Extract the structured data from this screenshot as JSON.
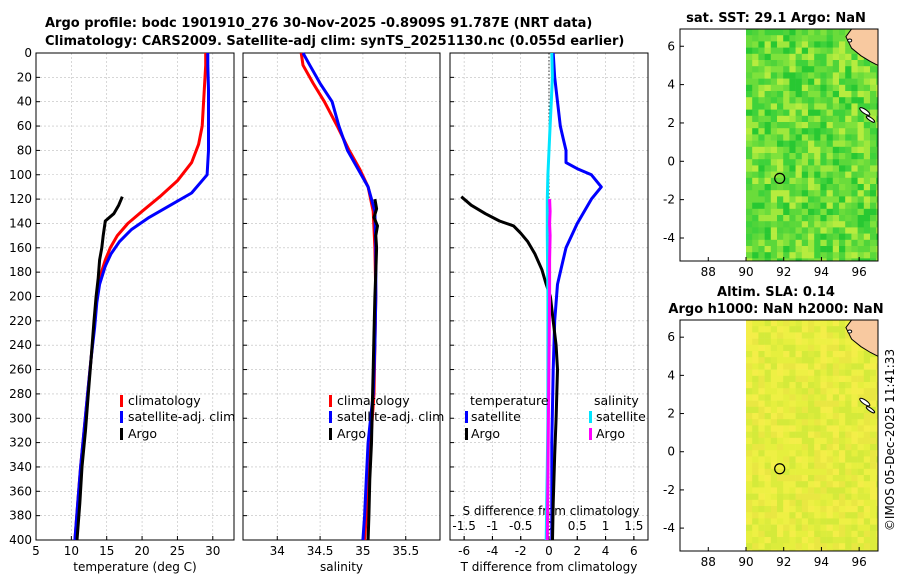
{
  "title": {
    "line1": "Argo profile: bodc 1901910_276 30-Nov-2025 -0.8909S 91.787E (NRT data)",
    "line2": "Climatology: CARS2009. Satellite-adj clim: synTS_20251130.nc (0.055d earlier)"
  },
  "side_label": "©IMOS 05-Dec-2025 11:41:33",
  "colors": {
    "climatology": "#ff0000",
    "satellite": "#0000ff",
    "argo": "#000000",
    "sal_sat": "#00e5ff",
    "sal_argo": "#ff00ff"
  },
  "chart_data": [
    {
      "id": "temp",
      "type": "line",
      "xlabel": "temperature (deg C)",
      "xlim": [
        5,
        33
      ],
      "xticks": [
        5,
        10,
        15,
        20,
        25,
        30
      ],
      "ylim": [
        0,
        400
      ],
      "yticks": [
        0,
        20,
        40,
        60,
        80,
        100,
        120,
        140,
        160,
        180,
        200,
        220,
        240,
        260,
        280,
        300,
        320,
        340,
        360,
        380,
        400
      ],
      "legend": [
        "climatology",
        "satellite-adj. clim",
        "Argo"
      ],
      "series": [
        {
          "name": "climatology",
          "color": "#ff0000",
          "x": [
            29,
            29,
            28.8,
            28.5,
            28,
            27,
            25,
            22.5,
            20,
            18,
            16.5,
            15.5,
            14.8,
            14,
            13.6,
            13.3,
            12.8,
            12.3,
            11.8,
            11.3,
            10.9,
            10.5
          ],
          "y": [
            0,
            10,
            30,
            60,
            75,
            90,
            105,
            118,
            130,
            140,
            150,
            160,
            170,
            185,
            200,
            220,
            250,
            280,
            310,
            340,
            370,
            400
          ]
        },
        {
          "name": "satellite-adj. clim",
          "color": "#0000ff",
          "x": [
            29.3,
            29.3,
            29.4,
            29.4,
            29.4,
            29.2,
            27,
            24,
            21,
            18.5,
            16.8,
            15.6,
            14.8,
            14,
            13.6,
            13.3,
            12.8,
            12.3,
            11.8,
            11.3,
            10.9,
            10.5
          ],
          "y": [
            0,
            10,
            30,
            60,
            80,
            100,
            115,
            125,
            135,
            145,
            155,
            165,
            175,
            190,
            205,
            225,
            250,
            280,
            310,
            340,
            370,
            400
          ]
        },
        {
          "name": "Argo",
          "color": "#000000",
          "x": [
            17.2,
            16.7,
            16,
            14.8,
            14.5,
            14.3,
            14,
            13.8,
            13.5,
            13.2,
            12.8,
            12.4,
            12,
            11.5,
            11.2,
            10.8
          ],
          "y": [
            118,
            125,
            132,
            138,
            150,
            160,
            170,
            185,
            200,
            220,
            250,
            280,
            310,
            340,
            370,
            400
          ]
        }
      ]
    },
    {
      "id": "sal",
      "type": "line",
      "xlabel": "salinity",
      "xlim": [
        33.6,
        35.9
      ],
      "xticks": [
        34,
        34.5,
        35,
        35.5
      ],
      "ylim": [
        0,
        400
      ],
      "legend": [
        "climatology",
        "satellite-adj. clim",
        "Argo"
      ],
      "series": [
        {
          "name": "climatology",
          "color": "#ff0000",
          "x": [
            34.28,
            34.3,
            34.42,
            34.55,
            34.7,
            34.84,
            34.96,
            35.06,
            35.12,
            35.14,
            35.15,
            35.14,
            35.13,
            35.11,
            35.09,
            35.07,
            35.04,
            35.02
          ],
          "y": [
            0,
            10,
            25,
            40,
            60,
            80,
            95,
            110,
            130,
            160,
            200,
            240,
            280,
            300,
            320,
            350,
            380,
            400
          ]
        },
        {
          "name": "satellite-adj. clim",
          "color": "#0000ff",
          "x": [
            34.3,
            34.38,
            34.5,
            34.64,
            34.72,
            34.82,
            34.94,
            35.06,
            35.14,
            35.15,
            35.15,
            35.14,
            35.12,
            35.09,
            35.06,
            35.04,
            35.02,
            35
          ],
          "y": [
            0,
            10,
            25,
            40,
            60,
            80,
            95,
            110,
            130,
            160,
            200,
            240,
            280,
            300,
            320,
            350,
            380,
            400
          ]
        },
        {
          "name": "Argo",
          "color": "#000000",
          "x": [
            35.14,
            35.16,
            35.13,
            35.17,
            35.15,
            35.16,
            35.15,
            35.14,
            35.13,
            35.12,
            35.11,
            35.1,
            35.08,
            35.07,
            35.06
          ],
          "y": [
            120,
            128,
            135,
            142,
            150,
            160,
            180,
            200,
            230,
            260,
            290,
            320,
            350,
            380,
            400
          ]
        }
      ]
    },
    {
      "id": "diff",
      "type": "line",
      "xlabel": "T difference from climatology",
      "x2label": "S difference from climatology",
      "xlim": [
        -7,
        7
      ],
      "xticks": [
        -6,
        -4,
        -2,
        0,
        2,
        4,
        6
      ],
      "x2lim": [
        -1.75,
        1.75
      ],
      "x2ticks": [
        -1.5,
        -1,
        -0.5,
        0,
        0.5,
        1,
        1.5
      ],
      "x2ticklabels": [
        "-1.5",
        "-1",
        "-0.5",
        "0",
        "0.5",
        "1",
        "1.5"
      ],
      "ylim": [
        0,
        400
      ],
      "legend_t_title": "temperature",
      "legend_s_title": "salinity",
      "legend_t": [
        "satellite",
        "Argo"
      ],
      "legend_s": [
        "satellite",
        "Argo"
      ],
      "series": [
        {
          "name": "T satellite",
          "axis": "T",
          "color": "#0000ff",
          "x": [
            0.3,
            0.4,
            0.6,
            0.8,
            1,
            1.2,
            1.2,
            2,
            3,
            3.7,
            3,
            2,
            1.2,
            0.9,
            0.6,
            0.4,
            0.3,
            0.2,
            0.2
          ],
          "y": [
            0,
            20,
            40,
            60,
            70,
            80,
            90,
            95,
            100,
            110,
            120,
            140,
            160,
            175,
            190,
            220,
            260,
            320,
            400
          ]
        },
        {
          "name": "T Argo",
          "axis": "T",
          "color": "#000000",
          "x": [
            -6.2,
            -5.5,
            -4.5,
            -3.5,
            -2.5,
            -2,
            -1.5,
            -1,
            -0.5,
            -0.2,
            0.1,
            0.3,
            0.5,
            0.6,
            0.55,
            0.5,
            0.4,
            0.3,
            0.25
          ],
          "y": [
            118,
            125,
            132,
            138,
            142,
            148,
            155,
            165,
            178,
            190,
            200,
            220,
            240,
            260,
            280,
            300,
            330,
            370,
            400
          ]
        },
        {
          "name": "S satellite",
          "axis": "S",
          "color": "#00e5ff",
          "x": [
            0.05,
            0.06,
            0.04,
            0.02,
            0,
            -0.02,
            -0.03,
            -0.03,
            -0.02,
            -0.02,
            -0.02,
            -0.03,
            -0.04,
            -0.05
          ],
          "y": [
            0,
            20,
            40,
            60,
            80,
            100,
            120,
            150,
            200,
            250,
            300,
            340,
            370,
            400
          ]
        },
        {
          "name": "S Argo",
          "axis": "S",
          "color": "#ff00ff",
          "x": [
            0.01,
            0.02,
            0.01,
            0.02,
            0.01,
            0.01,
            0,
            -0.01,
            -0.02,
            -0.03
          ],
          "y": [
            120,
            130,
            140,
            150,
            170,
            200,
            250,
            300,
            350,
            400
          ]
        }
      ]
    },
    {
      "id": "sst_map",
      "type": "heatmap",
      "title": "sat. SST: 29.1 Argo: NaN",
      "xlim": [
        86.5,
        97
      ],
      "ylim": [
        -5.2,
        6.9
      ],
      "xticks": [
        88,
        90,
        92,
        94,
        96
      ],
      "yticks": [
        -4,
        -2,
        0,
        2,
        4,
        6
      ],
      "argo_position": [
        91.787,
        -0.8909
      ]
    },
    {
      "id": "sla_map",
      "type": "heatmap",
      "title_line1": "Altim. SLA: 0.14",
      "title_line2": "Argo h1000: NaN h2000: NaN",
      "xlim": [
        86.5,
        97
      ],
      "ylim": [
        -5.2,
        6.9
      ],
      "xticks": [
        88,
        90,
        92,
        94,
        96
      ],
      "yticks": [
        -4,
        -2,
        0,
        2,
        4,
        6
      ],
      "argo_position": [
        91.787,
        -0.8909
      ]
    }
  ]
}
